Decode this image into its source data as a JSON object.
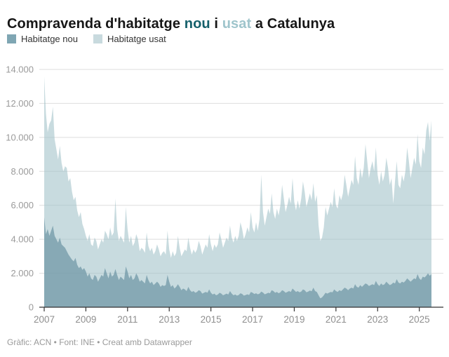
{
  "title": {
    "prefix": "Compravenda d'habitatge ",
    "word_nou": "nou",
    "middle": " i ",
    "word_usat": "usat",
    "suffix": " a Catalunya"
  },
  "legend": {
    "items": [
      {
        "label": "Habitatge nou",
        "color": "#7fa6b3"
      },
      {
        "label": "Habitatge usat",
        "color": "#c8dade"
      }
    ]
  },
  "footer": {
    "text": "Gràfic: ACN • Font: INE • Creat amb Datawrapper"
  },
  "colors": {
    "title_accent_nou": "#15606b",
    "title_accent_usat": "#9fc5cc",
    "area_nou_base": "#759ba9",
    "area_nou_opacity": 0.78,
    "area_usat_base": "#9dbec6",
    "area_usat_opacity": 0.56,
    "gridline": "#dddddd",
    "axis_line": "#333333",
    "axis_tick_label": "#8f8f8f",
    "y_tick_label": "#9a9a9a"
  },
  "chart_data": {
    "type": "area",
    "mode": "overlapping",
    "title": "Compravenda d'habitatge nou i usat a Catalunya",
    "xlabel": "",
    "ylabel": "",
    "frequency": "monthly",
    "x_start": "2007-01",
    "x_end": "2025-08",
    "x_tick_years": [
      "2007",
      "2009",
      "2011",
      "2013",
      "2015",
      "2017",
      "2019",
      "2021",
      "2023",
      "2025"
    ],
    "ylim": [
      0,
      14000
    ],
    "y_ticks": [
      0,
      2000,
      4000,
      6000,
      8000,
      10000,
      12000,
      14000
    ],
    "y_tick_labels": [
      "0",
      "2.000",
      "4.000",
      "6.000",
      "8.000",
      "10.000",
      "12.000",
      "14.000"
    ],
    "grid": true,
    "legend_position": "top-left",
    "series": [
      {
        "name": "Habitatge usat",
        "color": "#c8dade",
        "values": [
          13600,
          11400,
          10300,
          10800,
          11000,
          11800,
          9900,
          9300,
          8700,
          9500,
          8500,
          8000,
          8300,
          8200,
          7400,
          7600,
          6800,
          6300,
          6500,
          5700,
          5300,
          5600,
          4900,
          4600,
          4200,
          3900,
          4300,
          3700,
          3600,
          4100,
          3900,
          3400,
          3700,
          4000,
          3800,
          4500,
          4300,
          4000,
          4700,
          4200,
          4400,
          6400,
          4600,
          3900,
          4200,
          4000,
          3800,
          5900,
          4600,
          3800,
          4200,
          3600,
          3800,
          4300,
          4000,
          3300,
          3500,
          3400,
          3200,
          4400,
          3600,
          3300,
          3500,
          3100,
          3300,
          3700,
          3400,
          3000,
          3200,
          3300,
          3100,
          4500,
          3400,
          2900,
          3300,
          3000,
          3200,
          4200,
          3500,
          3000,
          3200,
          3400,
          3300,
          4100,
          3500,
          3100,
          3400,
          3200,
          3400,
          3900,
          3600,
          3100,
          3400,
          3700,
          3500,
          4300,
          3700,
          3300,
          3700,
          3500,
          3700,
          4400,
          4000,
          3500,
          3800,
          4100,
          3900,
          4800,
          4100,
          3800,
          4200,
          3900,
          4200,
          5000,
          4600,
          4000,
          4300,
          4700,
          4400,
          5600,
          4700,
          4400,
          5000,
          4500,
          5200,
          7800,
          5600,
          4800,
          5300,
          5800,
          5500,
          6700,
          5600,
          5200,
          5800,
          5400,
          6000,
          7200,
          6400,
          5600,
          6000,
          6500,
          6100,
          7600,
          6200,
          5700,
          6300,
          5800,
          6400,
          7400,
          6800,
          5900,
          6300,
          6700,
          6300,
          7300,
          6200,
          6600,
          4800,
          3900,
          4100,
          4700,
          5900,
          5400,
          5800,
          6200,
          5900,
          7000,
          6000,
          5800,
          6600,
          6300,
          6700,
          7800,
          7200,
          6500,
          7000,
          7500,
          7200,
          8900,
          7600,
          7200,
          8200,
          7600,
          8200,
          9600,
          8600,
          7600,
          8200,
          8600,
          8000,
          9400,
          7800,
          7200,
          8000,
          7400,
          7800,
          8800,
          8200,
          7200,
          7600,
          6100,
          7400,
          8600,
          7200,
          7000,
          7800,
          7400,
          8000,
          9400,
          8600,
          7600,
          8200,
          8800,
          8400,
          10200,
          8600,
          8200,
          9400,
          9000,
          10400,
          10900,
          9800,
          11000
        ]
      },
      {
        "name": "Habitatge nou",
        "color": "#87a9b5",
        "values": [
          5300,
          4300,
          4600,
          4200,
          4500,
          4800,
          4200,
          4000,
          3800,
          4100,
          3700,
          3600,
          3500,
          3300,
          3100,
          2950,
          2800,
          2700,
          2900,
          2500,
          2300,
          2400,
          2200,
          2300,
          2100,
          1800,
          2000,
          1700,
          1600,
          1900,
          1800,
          1500,
          1700,
          1900,
          1800,
          2300,
          2000,
          1700,
          2100,
          1800,
          1900,
          2250,
          1900,
          1600,
          1800,
          1700,
          1600,
          2400,
          2100,
          1700,
          1900,
          1600,
          1700,
          2000,
          1800,
          1500,
          1600,
          1500,
          1400,
          1900,
          1600,
          1400,
          1500,
          1300,
          1400,
          1500,
          1400,
          1200,
          1300,
          1250,
          1300,
          1900,
          1500,
          1200,
          1300,
          1100,
          1200,
          1350,
          1200,
          1000,
          1100,
          1050,
          950,
          1200,
          1000,
          900,
          950,
          850,
          900,
          1000,
          950,
          800,
          850,
          900,
          850,
          1050,
          850,
          750,
          800,
          700,
          750,
          850,
          800,
          700,
          750,
          800,
          750,
          950,
          800,
          700,
          750,
          680,
          720,
          820,
          780,
          680,
          720,
          760,
          720,
          900,
          850,
          780,
          820,
          760,
          800,
          920,
          860,
          760,
          800,
          850,
          820,
          1000,
          950,
          850,
          900,
          820,
          880,
          1000,
          950,
          850,
          900,
          950,
          900,
          1100,
          1000,
          900,
          950,
          880,
          920,
          1050,
          1000,
          880,
          920,
          980,
          940,
          1150,
          950,
          900,
          700,
          520,
          580,
          700,
          850,
          800,
          850,
          900,
          880,
          1050,
          950,
          900,
          1000,
          950,
          1050,
          1150,
          1100,
          1000,
          1100,
          1150,
          1100,
          1350,
          1200,
          1150,
          1300,
          1200,
          1300,
          1400,
          1350,
          1250,
          1300,
          1350,
          1300,
          1550,
          1350,
          1250,
          1400,
          1300,
          1350,
          1500,
          1400,
          1300,
          1350,
          1450,
          1400,
          1650,
          1450,
          1400,
          1500,
          1450,
          1550,
          1700,
          1600,
          1500,
          1600,
          1700,
          1650,
          1950,
          1700,
          1600,
          1800,
          1750,
          1850,
          2000,
          1850,
          1950
        ]
      }
    ]
  }
}
